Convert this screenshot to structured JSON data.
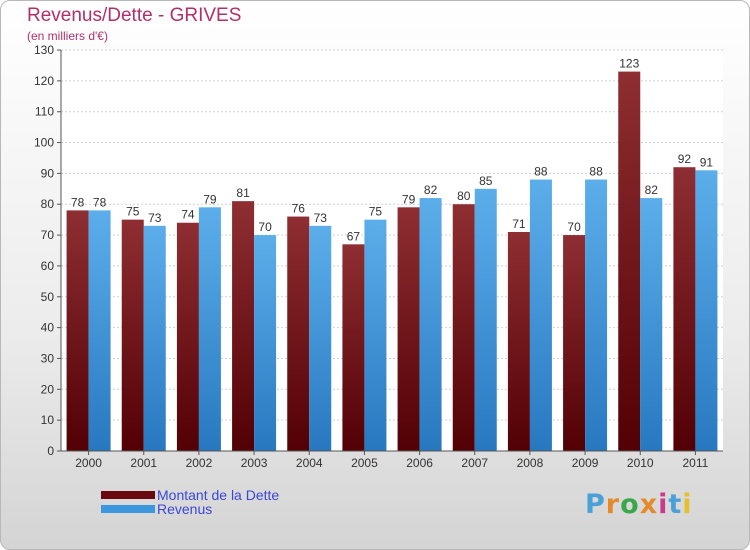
{
  "title": "Revenus/Dette - GRIVES",
  "subtitle": "(en milliers d'€)",
  "colors": {
    "dette": "#7a1018",
    "revenus": "#3d97df",
    "title": "#b0306a",
    "legend_text": "#3a48d6"
  },
  "logo": {
    "text": "Proxiti",
    "colors": [
      "#4aa0d8",
      "#e58a2a",
      "#3aa84a",
      "#e58a2a",
      "#c93a8a",
      "#4aa0d8",
      "#e5c02a"
    ]
  },
  "chart_data": {
    "type": "bar",
    "categories": [
      "2000",
      "2001",
      "2002",
      "2003",
      "2004",
      "2005",
      "2006",
      "2007",
      "2008",
      "2009",
      "2010",
      "2011"
    ],
    "series": [
      {
        "name": "Montant de la Dette",
        "values": [
          78,
          75,
          74,
          81,
          76,
          67,
          79,
          80,
          71,
          70,
          123,
          92
        ]
      },
      {
        "name": "Revenus",
        "values": [
          78,
          73,
          79,
          70,
          73,
          75,
          82,
          85,
          88,
          88,
          82,
          91
        ]
      }
    ],
    "yticks": [
      0,
      10,
      20,
      30,
      40,
      50,
      60,
      70,
      80,
      90,
      100,
      110,
      120,
      130
    ],
    "ylim": [
      0,
      130
    ],
    "grid": true,
    "legend_position": "bottom-left",
    "data_labels": true
  }
}
